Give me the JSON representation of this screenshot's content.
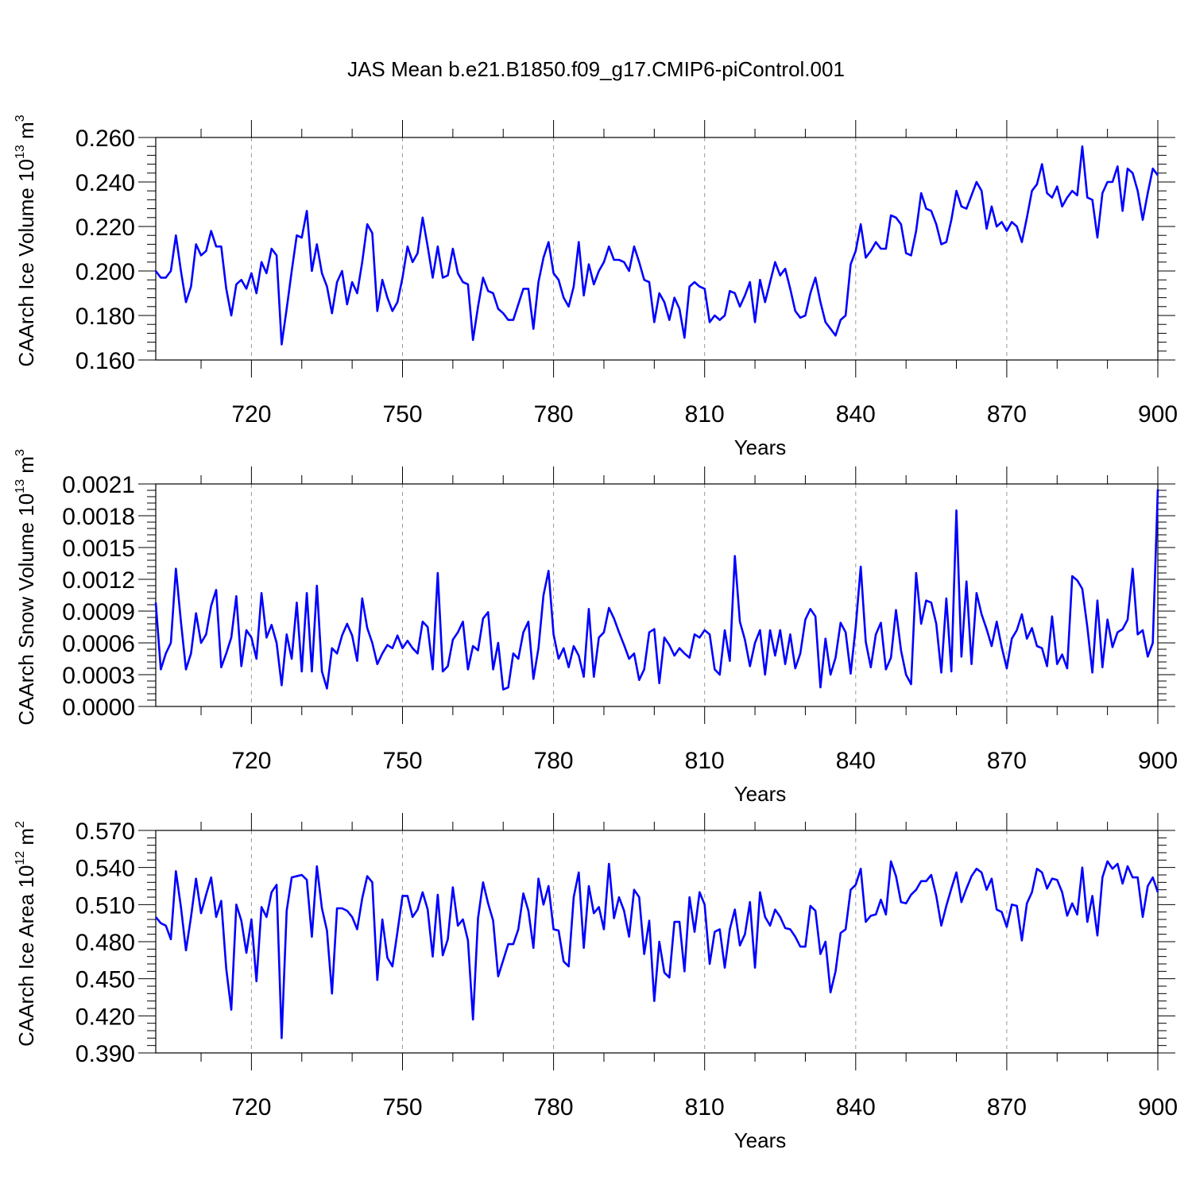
{
  "figure_title": "JAS Mean b.e21.B1850.f09_g17.CMIP6-piControl.001",
  "colors": {
    "series": "#0000ff",
    "axis": "#000000",
    "grid": "#999999"
  },
  "chart_data": [
    {
      "type": "line",
      "name": "ice-volume",
      "title": "",
      "xlabel": "Years",
      "ylabel": "CAArch Ice Volume 10",
      "ylabel_exponent": "13",
      "ylabel_unit": "m",
      "ylabel_unit_exponent": "3",
      "xlim": [
        701,
        900
      ],
      "ylim": [
        0.16,
        0.26
      ],
      "x_ticks": [
        720,
        750,
        780,
        810,
        840,
        870,
        900
      ],
      "y_ticks": [
        0.16,
        0.18,
        0.2,
        0.22,
        0.24,
        0.26
      ],
      "y_tick_labels": [
        "0.160",
        "0.180",
        "0.200",
        "0.220",
        "0.240",
        "0.260"
      ],
      "x_start": 701,
      "series": [
        {
          "name": "JAS mean",
          "values": [
            0.2,
            0.197,
            0.197,
            0.2,
            0.216,
            0.2,
            0.186,
            0.193,
            0.212,
            0.207,
            0.209,
            0.218,
            0.211,
            0.211,
            0.192,
            0.18,
            0.194,
            0.196,
            0.192,
            0.199,
            0.19,
            0.204,
            0.199,
            0.21,
            0.207,
            0.167,
            0.183,
            0.2,
            0.216,
            0.215,
            0.227,
            0.2,
            0.212,
            0.199,
            0.193,
            0.181,
            0.195,
            0.2,
            0.185,
            0.195,
            0.19,
            0.204,
            0.221,
            0.217,
            0.182,
            0.196,
            0.188,
            0.182,
            0.186,
            0.197,
            0.211,
            0.204,
            0.208,
            0.224,
            0.211,
            0.197,
            0.211,
            0.197,
            0.198,
            0.21,
            0.199,
            0.195,
            0.194,
            0.169,
            0.184,
            0.197,
            0.191,
            0.19,
            0.183,
            0.181,
            0.178,
            0.178,
            0.185,
            0.192,
            0.192,
            0.174,
            0.195,
            0.206,
            0.213,
            0.199,
            0.196,
            0.188,
            0.184,
            0.193,
            0.213,
            0.189,
            0.203,
            0.194,
            0.2,
            0.204,
            0.211,
            0.205,
            0.205,
            0.204,
            0.2,
            0.211,
            0.204,
            0.196,
            0.195,
            0.177,
            0.19,
            0.186,
            0.178,
            0.188,
            0.183,
            0.17,
            0.193,
            0.195,
            0.193,
            0.192,
            0.177,
            0.18,
            0.178,
            0.18,
            0.191,
            0.19,
            0.184,
            0.189,
            0.195,
            0.177,
            0.196,
            0.186,
            0.195,
            0.204,
            0.198,
            0.201,
            0.192,
            0.182,
            0.179,
            0.18,
            0.19,
            0.197,
            0.186,
            0.177,
            0.174,
            0.171,
            0.178,
            0.18,
            0.203,
            0.209,
            0.221,
            0.206,
            0.209,
            0.213,
            0.21,
            0.21,
            0.225,
            0.224,
            0.221,
            0.208,
            0.207,
            0.218,
            0.235,
            0.228,
            0.227,
            0.221,
            0.212,
            0.213,
            0.223,
            0.236,
            0.229,
            0.228,
            0.234,
            0.24,
            0.236,
            0.219,
            0.229,
            0.22,
            0.222,
            0.218,
            0.222,
            0.22,
            0.213,
            0.224,
            0.236,
            0.239,
            0.248,
            0.235,
            0.233,
            0.238,
            0.229,
            0.233,
            0.236,
            0.234,
            0.256,
            0.233,
            0.232,
            0.215,
            0.235,
            0.24,
            0.24,
            0.247,
            0.227,
            0.246,
            0.244,
            0.236,
            0.223,
            0.235,
            0.246,
            0.243
          ]
        }
      ]
    },
    {
      "type": "line",
      "name": "snow-volume",
      "title": "",
      "xlabel": "Years",
      "ylabel": "CAArch Snow Volume 10",
      "ylabel_exponent": "13",
      "ylabel_unit": "m",
      "ylabel_unit_exponent": "3",
      "xlim": [
        701,
        900
      ],
      "ylim": [
        0,
        0.0021
      ],
      "x_ticks": [
        720,
        750,
        780,
        810,
        840,
        870,
        900
      ],
      "y_ticks": [
        0,
        0.0003,
        0.0006,
        0.0009,
        0.0012,
        0.0015,
        0.0018,
        0.0021
      ],
      "y_tick_labels": [
        "0.0000",
        "0.0003",
        "0.0006",
        "0.0009",
        "0.0012",
        "0.0015",
        "0.0018",
        "0.0021"
      ],
      "x_start": 701,
      "series": [
        {
          "name": "JAS mean",
          "values": [
            0.00098,
            0.00035,
            0.0005,
            0.0006,
            0.0013,
            0.0008,
            0.00035,
            0.0005,
            0.00088,
            0.0006,
            0.00068,
            0.00095,
            0.0011,
            0.00037,
            0.0005,
            0.00065,
            0.00104,
            0.00038,
            0.00072,
            0.00065,
            0.00045,
            0.00107,
            0.00065,
            0.00077,
            0.0006,
            0.0002,
            0.00068,
            0.00045,
            0.00098,
            0.00033,
            0.00107,
            0.00033,
            0.00114,
            0.00033,
            0.00017,
            0.00055,
            0.0005,
            0.00067,
            0.00078,
            0.00067,
            0.00043,
            0.00102,
            0.00074,
            0.0006,
            0.0004,
            0.0005,
            0.00058,
            0.00055,
            0.00067,
            0.00055,
            0.00062,
            0.00055,
            0.0005,
            0.0008,
            0.00075,
            0.00035,
            0.00126,
            0.00033,
            0.00038,
            0.00063,
            0.0007,
            0.0008,
            0.00035,
            0.00057,
            0.00053,
            0.00083,
            0.00089,
            0.00035,
            0.0006,
            0.00016,
            0.00018,
            0.0005,
            0.00045,
            0.0007,
            0.0008,
            0.00026,
            0.00055,
            0.00105,
            0.00128,
            0.00068,
            0.00045,
            0.00055,
            0.00037,
            0.00057,
            0.00048,
            0.00028,
            0.00092,
            0.00028,
            0.00065,
            0.0007,
            0.00093,
            0.00083,
            0.0007,
            0.00058,
            0.00045,
            0.0005,
            0.00025,
            0.00035,
            0.0007,
            0.00073,
            0.00022,
            0.00065,
            0.00058,
            0.00048,
            0.00055,
            0.0005,
            0.00046,
            0.00068,
            0.00065,
            0.00072,
            0.00068,
            0.00035,
            0.0003,
            0.00072,
            0.00043,
            0.00142,
            0.0008,
            0.00063,
            0.00038,
            0.0006,
            0.00072,
            0.0003,
            0.00072,
            0.00048,
            0.00072,
            0.0004,
            0.00068,
            0.00036,
            0.0005,
            0.00082,
            0.00092,
            0.00085,
            0.00018,
            0.00064,
            0.0003,
            0.00046,
            0.00079,
            0.0007,
            0.00031,
            0.00075,
            0.00132,
            0.00061,
            0.00037,
            0.00068,
            0.00079,
            0.00035,
            0.00046,
            0.00091,
            0.00053,
            0.0003,
            0.00021,
            0.00126,
            0.00078,
            0.001,
            0.00098,
            0.00078,
            0.00032,
            0.00102,
            0.00033,
            0.00185,
            0.00047,
            0.00118,
            0.0004,
            0.00107,
            0.00087,
            0.00073,
            0.00057,
            0.0008,
            0.00056,
            0.00036,
            0.00064,
            0.00072,
            0.00087,
            0.00064,
            0.00074,
            0.00057,
            0.00055,
            0.00038,
            0.00085,
            0.0004,
            0.00049,
            0.00036,
            0.00123,
            0.00119,
            0.00111,
            0.00075,
            0.00032,
            0.001,
            0.00037,
            0.00082,
            0.00056,
            0.0007,
            0.00073,
            0.00082,
            0.0013,
            0.00068,
            0.00072,
            0.00047,
            0.0006,
            0.00205
          ]
        }
      ]
    },
    {
      "type": "line",
      "name": "ice-area",
      "title": "",
      "xlabel": "Years",
      "ylabel": "CAArch Ice Area 10",
      "ylabel_exponent": "12",
      "ylabel_unit": "m",
      "ylabel_unit_exponent": "2",
      "xlim": [
        701,
        900
      ],
      "ylim": [
        0.39,
        0.57
      ],
      "x_ticks": [
        720,
        750,
        780,
        810,
        840,
        870,
        900
      ],
      "y_ticks": [
        0.39,
        0.42,
        0.45,
        0.48,
        0.51,
        0.54,
        0.57
      ],
      "y_tick_labels": [
        "0.390",
        "0.420",
        "0.450",
        "0.480",
        "0.510",
        "0.540",
        "0.570"
      ],
      "x_start": 701,
      "series": [
        {
          "name": "JAS mean",
          "values": [
            0.5,
            0.495,
            0.493,
            0.482,
            0.537,
            0.508,
            0.473,
            0.5,
            0.531,
            0.503,
            0.518,
            0.532,
            0.5,
            0.513,
            0.458,
            0.425,
            0.51,
            0.497,
            0.471,
            0.498,
            0.448,
            0.508,
            0.5,
            0.52,
            0.526,
            0.402,
            0.505,
            0.532,
            0.533,
            0.534,
            0.53,
            0.484,
            0.541,
            0.507,
            0.489,
            0.438,
            0.507,
            0.507,
            0.505,
            0.5,
            0.49,
            0.515,
            0.533,
            0.528,
            0.449,
            0.498,
            0.467,
            0.46,
            0.488,
            0.517,
            0.517,
            0.5,
            0.506,
            0.52,
            0.506,
            0.468,
            0.518,
            0.469,
            0.482,
            0.524,
            0.493,
            0.498,
            0.481,
            0.417,
            0.499,
            0.528,
            0.511,
            0.497,
            0.452,
            0.465,
            0.478,
            0.478,
            0.49,
            0.519,
            0.505,
            0.475,
            0.531,
            0.51,
            0.525,
            0.49,
            0.489,
            0.464,
            0.46,
            0.516,
            0.536,
            0.475,
            0.525,
            0.503,
            0.508,
            0.49,
            0.543,
            0.499,
            0.516,
            0.505,
            0.484,
            0.522,
            0.516,
            0.47,
            0.497,
            0.432,
            0.48,
            0.455,
            0.451,
            0.496,
            0.496,
            0.456,
            0.516,
            0.488,
            0.52,
            0.51,
            0.462,
            0.488,
            0.49,
            0.459,
            0.49,
            0.506,
            0.477,
            0.486,
            0.512,
            0.459,
            0.52,
            0.5,
            0.493,
            0.506,
            0.5,
            0.491,
            0.49,
            0.484,
            0.476,
            0.476,
            0.509,
            0.505,
            0.47,
            0.48,
            0.439,
            0.456,
            0.487,
            0.49,
            0.522,
            0.526,
            0.539,
            0.496,
            0.501,
            0.502,
            0.514,
            0.502,
            0.545,
            0.533,
            0.512,
            0.511,
            0.518,
            0.522,
            0.529,
            0.529,
            0.534,
            0.517,
            0.493,
            0.509,
            0.523,
            0.536,
            0.512,
            0.523,
            0.533,
            0.539,
            0.536,
            0.522,
            0.531,
            0.506,
            0.504,
            0.492,
            0.51,
            0.509,
            0.481,
            0.511,
            0.52,
            0.539,
            0.536,
            0.523,
            0.531,
            0.53,
            0.52,
            0.501,
            0.511,
            0.502,
            0.54,
            0.496,
            0.517,
            0.485,
            0.532,
            0.545,
            0.539,
            0.543,
            0.527,
            0.541,
            0.532,
            0.532,
            0.5,
            0.525,
            0.532,
            0.52
          ]
        }
      ]
    }
  ]
}
